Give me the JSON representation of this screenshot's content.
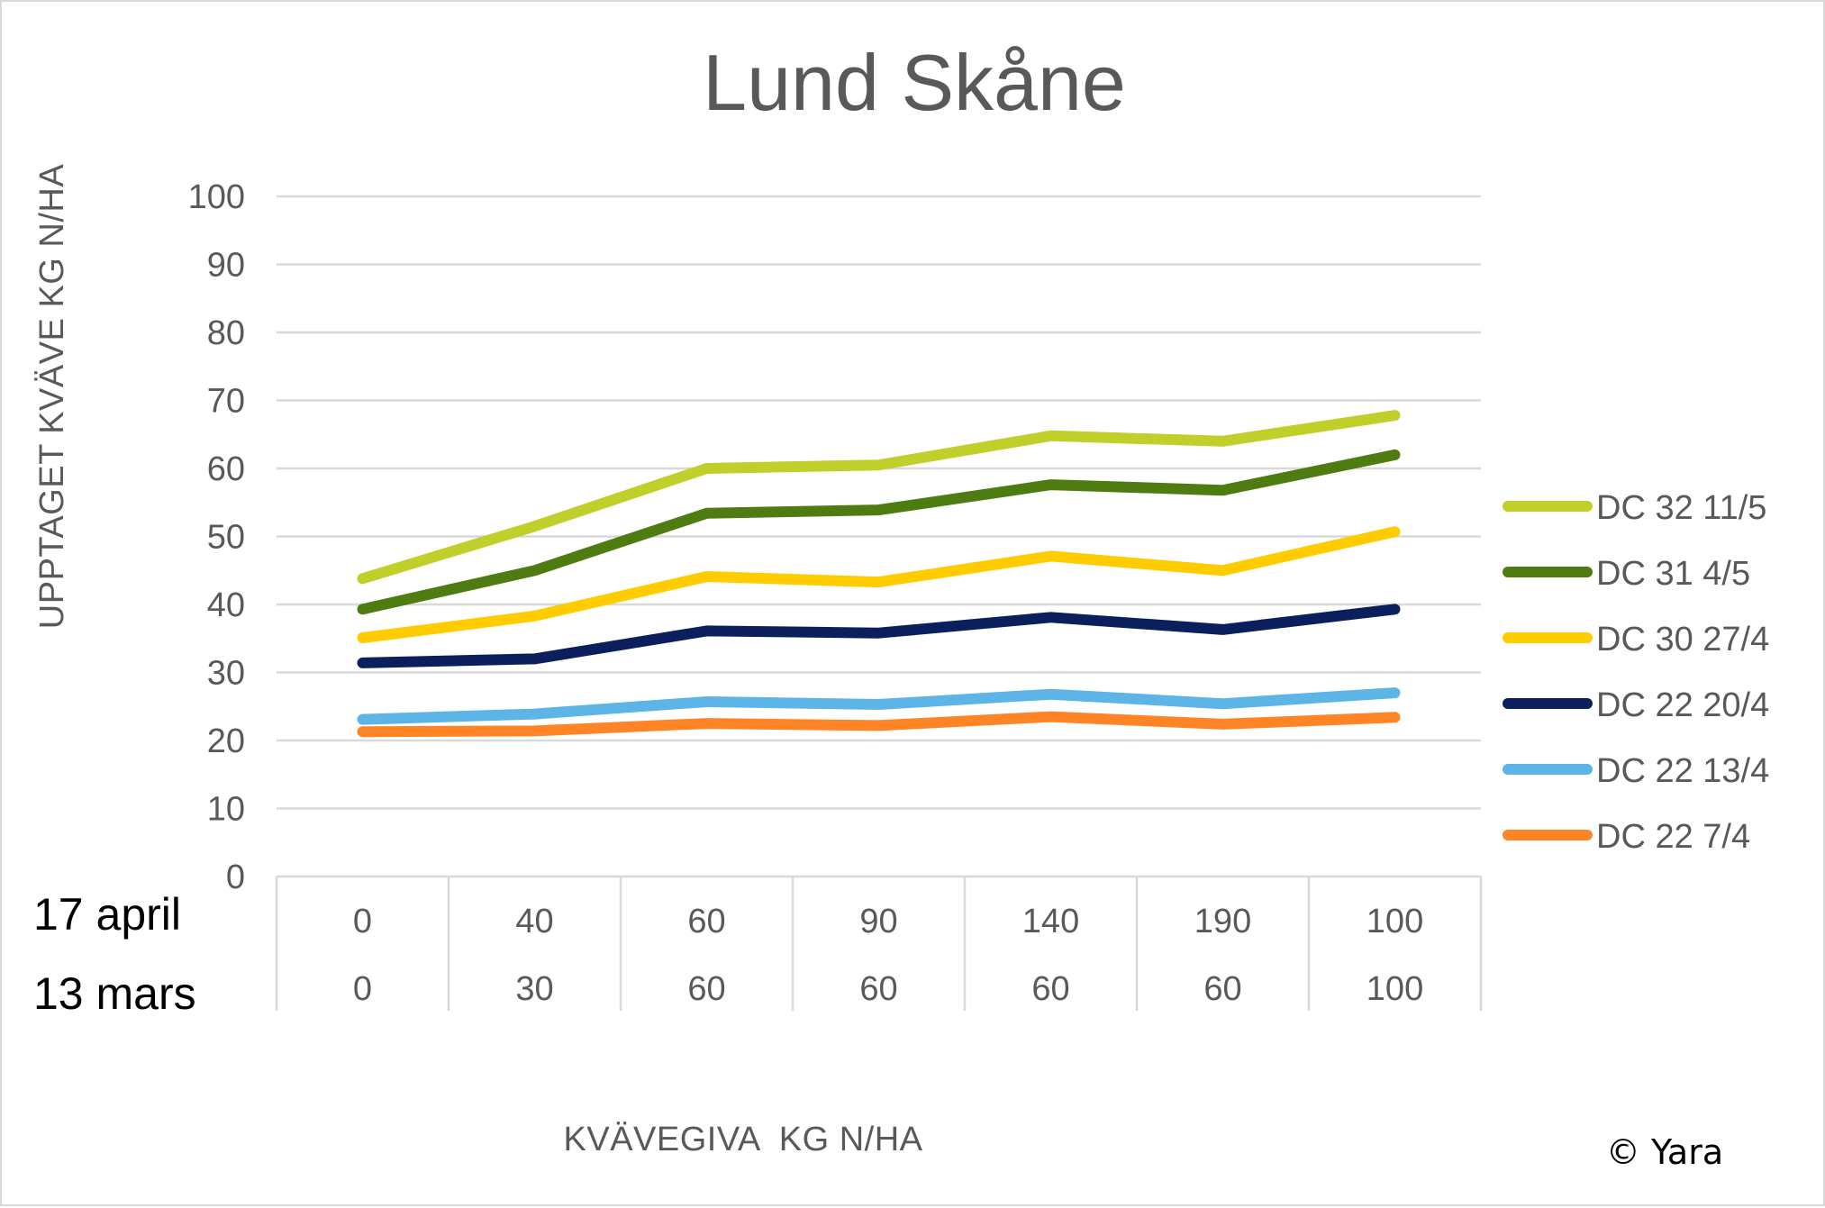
{
  "chart_data": {
    "type": "line",
    "title": "Lund Skåne",
    "ylabel": "UPPTAGET KVÄVE KG N/HA",
    "xlabel": "KVÄVEGIVA  KG N/HA",
    "ylim": [
      0,
      100
    ],
    "yticks": [
      "0",
      "10",
      "20",
      "30",
      "40",
      "50",
      "60",
      "70",
      "80",
      "90",
      "100"
    ],
    "category_rows": [
      {
        "label": "17 april",
        "values": [
          "0",
          "40",
          "60",
          "90",
          "140",
          "190",
          "100"
        ]
      },
      {
        "label": "13 mars",
        "values": [
          "0",
          "30",
          "60",
          "60",
          "60",
          "60",
          "100"
        ]
      }
    ],
    "grid": true,
    "legend_position": "right",
    "series": [
      {
        "name": "DC 32 11/5",
        "color": "#c0cf2a",
        "values": [
          43.8,
          51.5,
          60.0,
          60.5,
          64.8,
          64.0,
          67.8
        ]
      },
      {
        "name": "DC 31 4/5",
        "color": "#4e7c10",
        "values": [
          39.3,
          45.0,
          53.4,
          53.9,
          57.6,
          56.8,
          62.0
        ]
      },
      {
        "name": "DC 30 27/4",
        "color": "#ffcc00",
        "values": [
          35.1,
          38.3,
          44.1,
          43.3,
          47.1,
          45.0,
          50.7
        ]
      },
      {
        "name": "DC 22 20/4",
        "color": "#0b1f5c",
        "values": [
          31.4,
          32.0,
          36.1,
          35.8,
          38.1,
          36.3,
          39.3
        ]
      },
      {
        "name": "DC 22 13/4",
        "color": "#5db4e6",
        "values": [
          23.1,
          23.9,
          25.7,
          25.3,
          26.8,
          25.4,
          27.0
        ]
      },
      {
        "name": "DC 22 7/4",
        "color": "#ff8426",
        "values": [
          21.3,
          21.4,
          22.5,
          22.2,
          23.5,
          22.4,
          23.4
        ]
      }
    ]
  },
  "watermark": {
    "text": "© Yara"
  }
}
